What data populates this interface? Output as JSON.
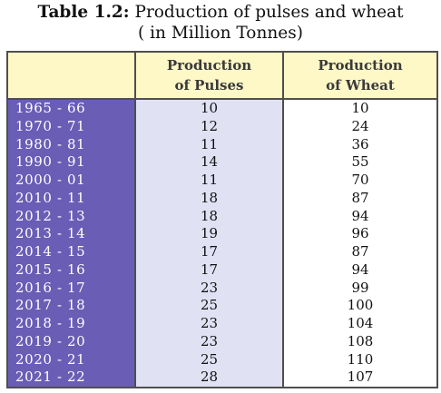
{
  "title": {
    "label": "Table 1.2:",
    "text": " Production of pulses and wheat",
    "subtitle": "( in Million Tonnes)"
  },
  "table": {
    "headers": [
      "",
      "Production\nof Pulses",
      "Production\nof Wheat"
    ],
    "rows": [
      {
        "year": "1965 - 66",
        "pulses": "10",
        "wheat": "10"
      },
      {
        "year": "1970 - 71",
        "pulses": "12",
        "wheat": "24"
      },
      {
        "year": "1980 - 81",
        "pulses": "11",
        "wheat": "36"
      },
      {
        "year": "1990 - 91",
        "pulses": "14",
        "wheat": "55"
      },
      {
        "year": "2000 - 01",
        "pulses": "11",
        "wheat": "70"
      },
      {
        "year": "2010 - 11",
        "pulses": "18",
        "wheat": "87"
      },
      {
        "year": "2012 - 13",
        "pulses": "18",
        "wheat": "94"
      },
      {
        "year": "2013 - 14",
        "pulses": "19",
        "wheat": "96"
      },
      {
        "year": "2014 - 15",
        "pulses": "17",
        "wheat": "87"
      },
      {
        "year": "2015 - 16",
        "pulses": "17",
        "wheat": "94"
      },
      {
        "year": "2016 - 17",
        "pulses": "23",
        "wheat": "99"
      },
      {
        "year": "2017 - 18",
        "pulses": "25",
        "wheat": "100"
      },
      {
        "year": "2018 - 19",
        "pulses": "23",
        "wheat": "104"
      },
      {
        "year": "2019 - 20",
        "pulses": "23",
        "wheat": "108"
      },
      {
        "year": "2020 - 21",
        "pulses": "25",
        "wheat": "110"
      },
      {
        "year": "2021 - 22",
        "pulses": "28",
        "wheat": "107"
      }
    ]
  }
}
